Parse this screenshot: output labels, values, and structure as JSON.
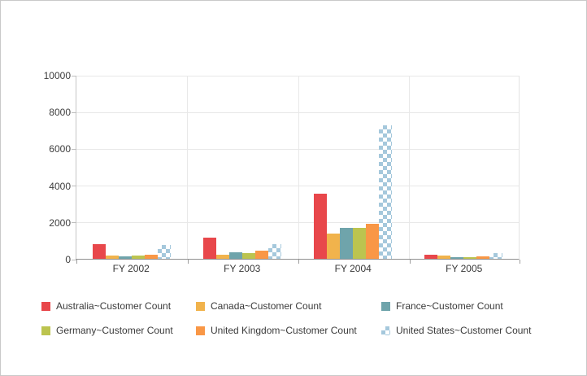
{
  "window": {
    "background": "#ffffff",
    "border_color": "#c9c9c9"
  },
  "chart_data": {
    "type": "bar",
    "title": "",
    "categories": [
      "FY 2002",
      "FY 2003",
      "FY 2004",
      "FY 2005"
    ],
    "series": [
      {
        "name": "Australia~Customer Count",
        "color": "#e8474b",
        "pattern": "solid",
        "values": [
          780,
          1150,
          3560,
          220
        ]
      },
      {
        "name": "Canada~Customer Count",
        "color": "#f1b34c",
        "pattern": "solid",
        "values": [
          175,
          210,
          1380,
          190
        ]
      },
      {
        "name": "France~Customer Count",
        "color": "#6fa4ab",
        "pattern": "solid",
        "values": [
          130,
          350,
          1690,
          90
        ]
      },
      {
        "name": "Germany~Customer Count",
        "color": "#bcc44f",
        "pattern": "solid",
        "values": [
          160,
          320,
          1690,
          80
        ]
      },
      {
        "name": "United Kingdom~Customer Count",
        "color": "#f99746",
        "pattern": "solid",
        "values": [
          230,
          430,
          1900,
          130
        ]
      },
      {
        "name": "United States~Customer Count",
        "color": "#a5c8dc",
        "pattern": "checker",
        "values": [
          750,
          810,
          7250,
          330
        ]
      }
    ],
    "ylim": [
      0,
      10000
    ],
    "y_tick_interval": 2000,
    "y_tick_labels": [
      "0",
      "2000",
      "4000",
      "6000",
      "8000",
      "10000"
    ],
    "grid": true,
    "legend_position": "bottom"
  },
  "axes": {
    "grid_color": "#e8e8e8",
    "axis_line_color": "#8f8f8f",
    "tick_color": "#9e9e9e",
    "label_color": "#3d3d3d"
  }
}
